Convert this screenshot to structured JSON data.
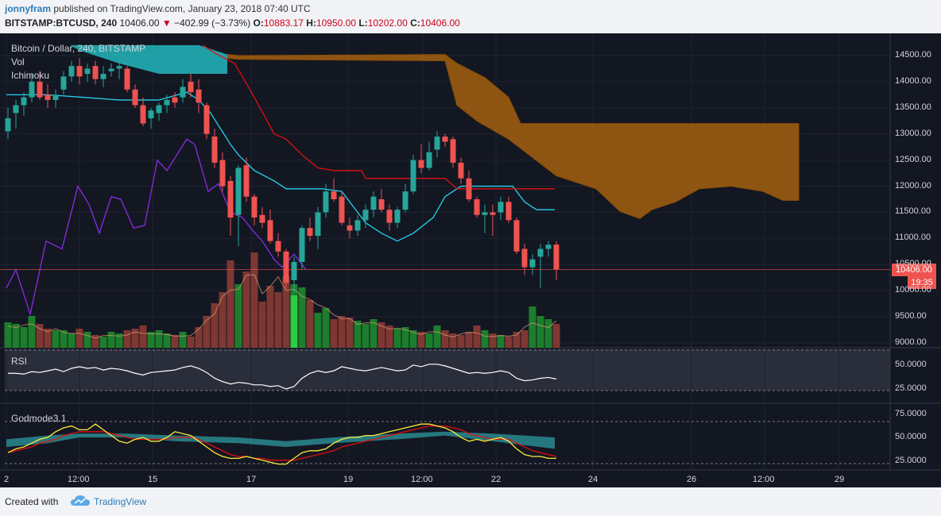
{
  "header": {
    "author": "jonnyfram",
    "published_text": "published on TradingView.com, January 23, 2018 07:40 UTC",
    "symbol": "BITSTAMP:BTCUSD, 240",
    "last": "10406.00",
    "arrow": "▼",
    "change": "−402.99 (−3.73%)",
    "o_label": "O:",
    "o_value": "10883.17",
    "h_label": "H:",
    "h_value": "10950.00",
    "l_label": "L:",
    "l_value": "10202.00",
    "c_label": "C:",
    "c_value": "10406.00"
  },
  "main_pane": {
    "title": "Bitcoin / Dollar, 240, BITSTAMP",
    "indicators": [
      "Vol",
      "Ichimoku"
    ],
    "price_ticks": [
      "14500.00",
      "14000.00",
      "13500.00",
      "13000.00",
      "12500.00",
      "12000.00",
      "11500.00",
      "11000.00",
      "10500.00",
      "10000.00",
      "9500.00",
      "9000.00"
    ],
    "last_price_tag": "10406.00",
    "countdown_tag": "19:35"
  },
  "rsi_pane": {
    "title": "RSI",
    "ticks": [
      "50.0000",
      "25.0000"
    ]
  },
  "godmode_pane": {
    "title": "Godmode3.1",
    "ticks": [
      "75.0000",
      "50.0000",
      "25.0000"
    ]
  },
  "time_axis": [
    "2",
    "12:00",
    "15",
    "17",
    "19",
    "12:00",
    "22",
    "24",
    "26",
    "12:00",
    "29"
  ],
  "footer": {
    "created_with": "Created with",
    "brand": "TradingView"
  },
  "colors": {
    "background": "#131722",
    "up": "#26a69a",
    "down": "#ef5350",
    "kumo": "#b8690c",
    "tenkan": "#22d3ee",
    "kijun": "#e01010",
    "lagging": "#8a2be2",
    "rsi": "#ffffff",
    "godmode_fast": "#ffeb3b",
    "godmode_slow": "#e01010"
  },
  "chart_data": {
    "type": "candlestick",
    "interval": "240",
    "ylim": [
      9000,
      14700
    ],
    "ohlc": [
      {
        "o": 13050,
        "h": 13500,
        "l": 12900,
        "c": 13300
      },
      {
        "o": 13400,
        "h": 13650,
        "l": 13100,
        "c": 13550
      },
      {
        "o": 13550,
        "h": 13800,
        "l": 13350,
        "c": 13700
      },
      {
        "o": 13700,
        "h": 14150,
        "l": 13600,
        "c": 14000
      },
      {
        "o": 14000,
        "h": 14200,
        "l": 13650,
        "c": 13700
      },
      {
        "o": 13750,
        "h": 13950,
        "l": 13500,
        "c": 13650
      },
      {
        "o": 13650,
        "h": 13850,
        "l": 13500,
        "c": 13750
      },
      {
        "o": 13850,
        "h": 14200,
        "l": 13750,
        "c": 14100
      },
      {
        "o": 14100,
        "h": 14400,
        "l": 14000,
        "c": 14300
      },
      {
        "o": 14300,
        "h": 14450,
        "l": 13950,
        "c": 14100
      },
      {
        "o": 14150,
        "h": 14350,
        "l": 14000,
        "c": 14250
      },
      {
        "o": 14300,
        "h": 14400,
        "l": 13950,
        "c": 14050
      },
      {
        "o": 14050,
        "h": 14300,
        "l": 13900,
        "c": 14150
      },
      {
        "o": 14200,
        "h": 14350,
        "l": 14100,
        "c": 14250
      },
      {
        "o": 14250,
        "h": 14400,
        "l": 14050,
        "c": 14300
      },
      {
        "o": 14250,
        "h": 14300,
        "l": 13800,
        "c": 13850
      },
      {
        "o": 13850,
        "h": 13950,
        "l": 13500,
        "c": 13550
      },
      {
        "o": 13550,
        "h": 13700,
        "l": 13150,
        "c": 13200
      },
      {
        "o": 13300,
        "h": 13500,
        "l": 13100,
        "c": 13450
      },
      {
        "o": 13400,
        "h": 13600,
        "l": 13250,
        "c": 13550
      },
      {
        "o": 13550,
        "h": 13750,
        "l": 13400,
        "c": 13650
      },
      {
        "o": 13700,
        "h": 13800,
        "l": 13500,
        "c": 13600
      },
      {
        "o": 13700,
        "h": 14050,
        "l": 13600,
        "c": 13900
      },
      {
        "o": 14000,
        "h": 14150,
        "l": 13700,
        "c": 13800
      },
      {
        "o": 13850,
        "h": 14050,
        "l": 13400,
        "c": 13600
      },
      {
        "o": 13550,
        "h": 13600,
        "l": 12900,
        "c": 13000
      },
      {
        "o": 12950,
        "h": 13100,
        "l": 12350,
        "c": 12450
      },
      {
        "o": 12500,
        "h": 12650,
        "l": 11900,
        "c": 12000
      },
      {
        "o": 12100,
        "h": 12200,
        "l": 11050,
        "c": 11400
      },
      {
        "o": 11450,
        "h": 12400,
        "l": 10850,
        "c": 12350
      },
      {
        "o": 12400,
        "h": 12550,
        "l": 11700,
        "c": 11800
      },
      {
        "o": 11800,
        "h": 11850,
        "l": 11250,
        "c": 11400
      },
      {
        "o": 11450,
        "h": 11600,
        "l": 11200,
        "c": 11300
      },
      {
        "o": 11350,
        "h": 11550,
        "l": 10900,
        "c": 10950
      },
      {
        "o": 10950,
        "h": 11100,
        "l": 10650,
        "c": 10750
      },
      {
        "o": 10750,
        "h": 10800,
        "l": 10050,
        "c": 10150
      },
      {
        "o": 10200,
        "h": 10650,
        "l": 9950,
        "c": 10550
      },
      {
        "o": 10550,
        "h": 11250,
        "l": 10400,
        "c": 11200
      },
      {
        "o": 11200,
        "h": 11400,
        "l": 10950,
        "c": 11050
      },
      {
        "o": 11050,
        "h": 11600,
        "l": 10800,
        "c": 11500
      },
      {
        "o": 11500,
        "h": 12050,
        "l": 11400,
        "c": 11900
      },
      {
        "o": 11900,
        "h": 12150,
        "l": 11700,
        "c": 11750
      },
      {
        "o": 11800,
        "h": 11900,
        "l": 11250,
        "c": 11300
      },
      {
        "o": 11250,
        "h": 11400,
        "l": 11000,
        "c": 11150
      },
      {
        "o": 11150,
        "h": 11450,
        "l": 11050,
        "c": 11350
      },
      {
        "o": 11350,
        "h": 11650,
        "l": 11200,
        "c": 11550
      },
      {
        "o": 11550,
        "h": 11900,
        "l": 11400,
        "c": 11800
      },
      {
        "o": 11750,
        "h": 11950,
        "l": 11500,
        "c": 11550
      },
      {
        "o": 11550,
        "h": 11650,
        "l": 11150,
        "c": 11300
      },
      {
        "o": 11300,
        "h": 11600,
        "l": 11200,
        "c": 11550
      },
      {
        "o": 11550,
        "h": 12050,
        "l": 11500,
        "c": 11900
      },
      {
        "o": 11900,
        "h": 12600,
        "l": 11850,
        "c": 12500
      },
      {
        "o": 12500,
        "h": 12800,
        "l": 12250,
        "c": 12350
      },
      {
        "o": 12350,
        "h": 12850,
        "l": 12300,
        "c": 12650
      },
      {
        "o": 12700,
        "h": 13050,
        "l": 12550,
        "c": 12950
      },
      {
        "o": 12950,
        "h": 13000,
        "l": 12750,
        "c": 12850
      },
      {
        "o": 12900,
        "h": 12950,
        "l": 12350,
        "c": 12450
      },
      {
        "o": 12450,
        "h": 12550,
        "l": 12050,
        "c": 12150
      },
      {
        "o": 12150,
        "h": 12300,
        "l": 11700,
        "c": 11750
      },
      {
        "o": 11750,
        "h": 11800,
        "l": 11400,
        "c": 11450
      },
      {
        "o": 11450,
        "h": 11650,
        "l": 11100,
        "c": 11500
      },
      {
        "o": 11500,
        "h": 11650,
        "l": 11050,
        "c": 11450
      },
      {
        "o": 11500,
        "h": 11800,
        "l": 11350,
        "c": 11700
      },
      {
        "o": 11700,
        "h": 11800,
        "l": 11300,
        "c": 11350
      },
      {
        "o": 11350,
        "h": 11400,
        "l": 10700,
        "c": 10750
      },
      {
        "o": 10800,
        "h": 10900,
        "l": 10300,
        "c": 10450
      },
      {
        "o": 10450,
        "h": 10700,
        "l": 10300,
        "c": 10600
      },
      {
        "o": 10650,
        "h": 10900,
        "l": 10050,
        "c": 10800
      },
      {
        "o": 10800,
        "h": 10950,
        "l": 10650,
        "c": 10880
      },
      {
        "o": 10883.17,
        "h": 10950,
        "l": 10202,
        "c": 10406
      }
    ]
  }
}
